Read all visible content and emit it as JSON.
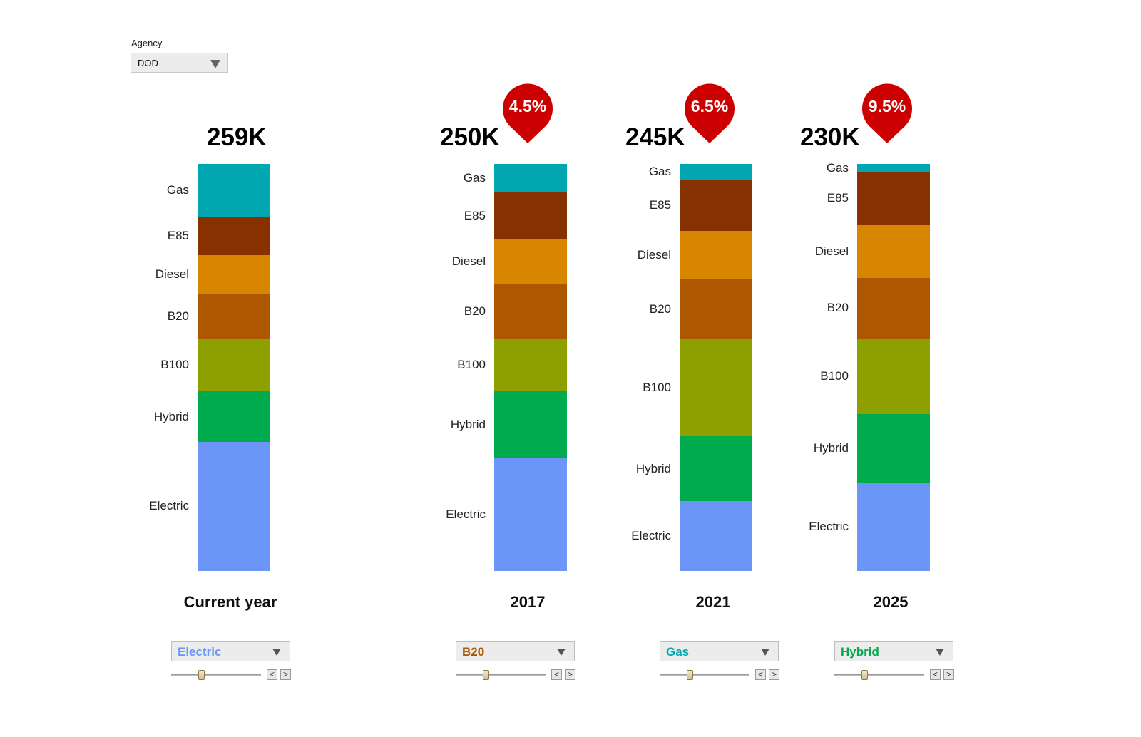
{
  "filter": {
    "label": "Agency",
    "value": "DOD"
  },
  "chart_data": {
    "type": "bar",
    "stacked": true,
    "categories": [
      "Current year",
      "2017",
      "2021",
      "2025"
    ],
    "segment_order": [
      "Gas",
      "E85",
      "Diesel",
      "B20",
      "B100",
      "Hybrid",
      "Electric"
    ],
    "colors": {
      "Gas": "#00a6b0",
      "E85": "#873000",
      "Diesel": "#d88600",
      "B20": "#ad5700",
      "B100": "#8ea000",
      "Hybrid": "#00ab4e",
      "Electric": "#6b95f6"
    },
    "columns": [
      {
        "name": "Current year",
        "total": "259K",
        "reduction": null,
        "shares": [
          13,
          9.5,
          9.5,
          11,
          13,
          12.5,
          31.5
        ]
      },
      {
        "name": "2017",
        "total": "250K",
        "reduction": "4.5%",
        "shares": [
          7,
          11.5,
          11,
          13.5,
          13,
          16.5,
          27.5
        ]
      },
      {
        "name": "2021",
        "total": "245K",
        "reduction": "6.5%",
        "shares": [
          4,
          12.5,
          12,
          14.5,
          24,
          16,
          17
        ]
      },
      {
        "name": "2025",
        "total": "230K",
        "reduction": "9.5%",
        "shares": [
          2,
          13,
          13,
          15,
          18.5,
          17,
          21.5
        ]
      }
    ]
  },
  "controls": [
    {
      "selected": "Electric",
      "color": "#6b95f6"
    },
    {
      "selected": "B20",
      "color": "#ad5700"
    },
    {
      "selected": "Gas",
      "color": "#00a6b0"
    },
    {
      "selected": "Hybrid",
      "color": "#00ab4e"
    }
  ],
  "steppers": {
    "prev": "<",
    "next": ">"
  },
  "pin_color": "#cc0000"
}
